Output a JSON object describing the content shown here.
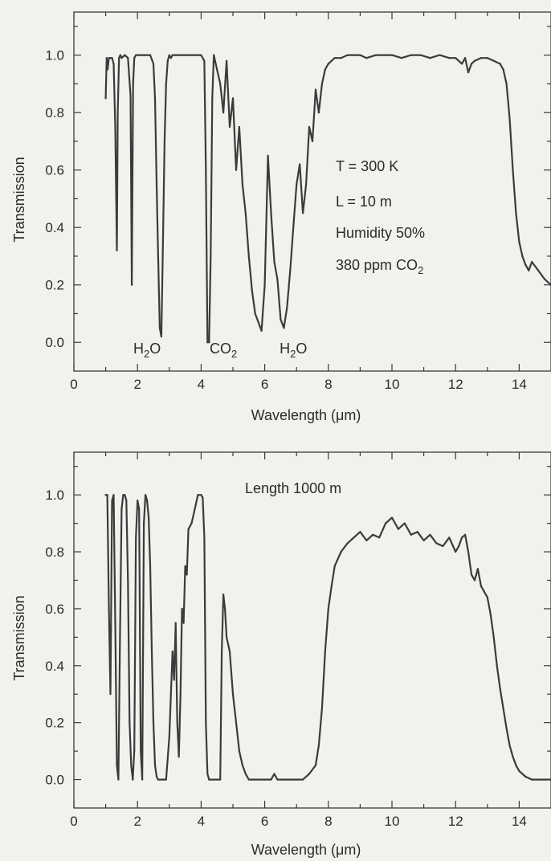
{
  "chart_data": [
    {
      "type": "line",
      "xlabel": "Wavelength (μm)",
      "ylabel": "Transmission",
      "xlim": [
        0,
        15
      ],
      "ylim": [
        -0.1,
        1.15
      ],
      "xticks": [
        0,
        2,
        4,
        6,
        8,
        10,
        12,
        14
      ],
      "yticks": [
        0.0,
        0.2,
        0.4,
        0.6,
        0.8,
        1.0
      ],
      "xticklabels": [
        "0",
        "2",
        "4",
        "6",
        "8",
        "10",
        "12",
        "14"
      ],
      "yticklabels": [
        "0.0",
        "0.2",
        "0.4",
        "0.6",
        "0.8",
        "1.0"
      ],
      "annotations": [
        {
          "text": "H₂O",
          "x": 2.3,
          "y": -0.03
        },
        {
          "text": "CO₂",
          "x": 4.7,
          "y": -0.03
        },
        {
          "text": "H₂O",
          "x": 6.9,
          "y": -0.03
        }
      ],
      "info_lines": [
        "T = 300 K",
        "L = 10 m",
        "Humidity 50%",
        "380 ppm CO₂"
      ],
      "series": [
        {
          "x": [
            1.0,
            1.03,
            1.06,
            1.1,
            1.15,
            1.2,
            1.25,
            1.3,
            1.35,
            1.38,
            1.42,
            1.46,
            1.5,
            1.6,
            1.7,
            1.78,
            1.82,
            1.86,
            1.9,
            1.95,
            2.0,
            2.2,
            2.4,
            2.5,
            2.55,
            2.6,
            2.65,
            2.7,
            2.75,
            2.8,
            2.85,
            2.9,
            2.95,
            3.0,
            3.05,
            3.1,
            3.2,
            3.4,
            3.6,
            3.8,
            4.0,
            4.1,
            4.15,
            4.2,
            4.25,
            4.3,
            4.35,
            4.4,
            4.5,
            4.6,
            4.7,
            4.8,
            4.9,
            5.0,
            5.1,
            5.2,
            5.3,
            5.4,
            5.5,
            5.6,
            5.7,
            5.8,
            5.9,
            6.0,
            6.1,
            6.2,
            6.3,
            6.4,
            6.5,
            6.6,
            6.7,
            6.8,
            6.9,
            7.0,
            7.1,
            7.2,
            7.3,
            7.4,
            7.5,
            7.6,
            7.7,
            7.8,
            7.9,
            8.0,
            8.2,
            8.4,
            8.6,
            8.8,
            9.0,
            9.2,
            9.5,
            9.8,
            10.0,
            10.3,
            10.6,
            10.9,
            11.2,
            11.5,
            11.8,
            12.0,
            12.2,
            12.3,
            12.4,
            12.5,
            12.6,
            12.8,
            13.0,
            13.2,
            13.4,
            13.5,
            13.6,
            13.7,
            13.8,
            13.9,
            14.0,
            14.1,
            14.2,
            14.3,
            14.4,
            14.6,
            14.8,
            15.0
          ],
          "y": [
            0.85,
            0.99,
            0.95,
            0.99,
            0.99,
            0.99,
            0.97,
            0.75,
            0.32,
            0.8,
            0.99,
            1.0,
            0.99,
            1.0,
            0.99,
            0.86,
            0.2,
            0.9,
            0.99,
            1.0,
            1.0,
            1.0,
            1.0,
            0.97,
            0.85,
            0.55,
            0.3,
            0.05,
            0.02,
            0.35,
            0.7,
            0.9,
            0.98,
            1.0,
            0.99,
            1.0,
            1.0,
            1.0,
            1.0,
            1.0,
            1.0,
            0.98,
            0.6,
            0.0,
            0.0,
            0.3,
            0.85,
            1.0,
            0.95,
            0.9,
            0.8,
            0.98,
            0.75,
            0.85,
            0.6,
            0.75,
            0.55,
            0.45,
            0.3,
            0.18,
            0.1,
            0.07,
            0.04,
            0.2,
            0.65,
            0.45,
            0.28,
            0.22,
            0.08,
            0.05,
            0.12,
            0.25,
            0.4,
            0.55,
            0.62,
            0.45,
            0.55,
            0.75,
            0.7,
            0.88,
            0.8,
            0.9,
            0.95,
            0.97,
            0.99,
            0.99,
            1.0,
            1.0,
            1.0,
            0.99,
            1.0,
            1.0,
            1.0,
            0.99,
            1.0,
            1.0,
            0.99,
            1.0,
            0.99,
            0.99,
            0.97,
            0.99,
            0.94,
            0.97,
            0.98,
            0.99,
            0.99,
            0.98,
            0.97,
            0.95,
            0.9,
            0.78,
            0.6,
            0.45,
            0.35,
            0.3,
            0.27,
            0.25,
            0.28,
            0.25,
            0.22,
            0.2
          ]
        }
      ]
    },
    {
      "type": "line",
      "xlabel": "Wavelength (μm)",
      "ylabel": "Transmission",
      "xlim": [
        0,
        15
      ],
      "ylim": [
        -0.1,
        1.15
      ],
      "xticks": [
        0,
        2,
        4,
        6,
        8,
        10,
        12,
        14
      ],
      "yticks": [
        0.0,
        0.2,
        0.4,
        0.6,
        0.8,
        1.0
      ],
      "xticklabels": [
        "0",
        "2",
        "4",
        "6",
        "8",
        "10",
        "12",
        "14"
      ],
      "yticklabels": [
        "0.0",
        "0.2",
        "0.4",
        "0.6",
        "0.8",
        "1.0"
      ],
      "annotations": [],
      "info_lines": [
        "Length 1000 m"
      ],
      "series": [
        {
          "x": [
            1.0,
            1.05,
            1.1,
            1.15,
            1.2,
            1.25,
            1.3,
            1.35,
            1.4,
            1.45,
            1.5,
            1.55,
            1.6,
            1.65,
            1.7,
            1.75,
            1.8,
            1.85,
            1.9,
            1.95,
            2.0,
            2.05,
            2.1,
            2.15,
            2.2,
            2.25,
            2.3,
            2.35,
            2.4,
            2.45,
            2.5,
            2.55,
            2.6,
            2.65,
            2.7,
            2.8,
            2.9,
            3.0,
            3.05,
            3.1,
            3.15,
            3.2,
            3.25,
            3.3,
            3.35,
            3.4,
            3.45,
            3.5,
            3.55,
            3.6,
            3.7,
            3.8,
            3.9,
            4.0,
            4.05,
            4.1,
            4.15,
            4.2,
            4.25,
            4.3,
            4.4,
            4.5,
            4.6,
            4.65,
            4.7,
            4.75,
            4.8,
            4.9,
            5.0,
            5.1,
            5.2,
            5.3,
            5.4,
            5.5,
            5.6,
            5.8,
            6.0,
            6.2,
            6.3,
            6.4,
            6.6,
            6.8,
            7.0,
            7.2,
            7.4,
            7.6,
            7.7,
            7.8,
            7.9,
            8.0,
            8.1,
            8.2,
            8.4,
            8.6,
            8.8,
            9.0,
            9.2,
            9.4,
            9.6,
            9.8,
            10.0,
            10.2,
            10.4,
            10.6,
            10.8,
            11.0,
            11.2,
            11.4,
            11.6,
            11.8,
            12.0,
            12.1,
            12.2,
            12.3,
            12.4,
            12.5,
            12.6,
            12.7,
            12.8,
            12.9,
            13.0,
            13.1,
            13.2,
            13.3,
            13.4,
            13.5,
            13.6,
            13.7,
            13.8,
            13.9,
            14.0,
            14.1,
            14.2,
            14.4,
            14.6,
            14.8,
            15.0
          ],
          "y": [
            1.0,
            1.0,
            0.6,
            0.3,
            0.98,
            1.0,
            0.55,
            0.05,
            0.0,
            0.5,
            0.95,
            1.0,
            1.0,
            0.98,
            0.7,
            0.2,
            0.05,
            0.0,
            0.1,
            0.85,
            0.98,
            0.95,
            0.1,
            0.0,
            0.9,
            1.0,
            0.98,
            0.92,
            0.75,
            0.45,
            0.2,
            0.05,
            0.01,
            0.0,
            0.0,
            0.0,
            0.0,
            0.15,
            0.3,
            0.45,
            0.35,
            0.55,
            0.2,
            0.08,
            0.3,
            0.6,
            0.55,
            0.75,
            0.72,
            0.88,
            0.9,
            0.95,
            1.0,
            1.0,
            0.99,
            0.85,
            0.2,
            0.02,
            0.0,
            0.0,
            0.0,
            0.0,
            0.0,
            0.45,
            0.65,
            0.6,
            0.5,
            0.45,
            0.3,
            0.2,
            0.1,
            0.05,
            0.02,
            0.0,
            0.0,
            0.0,
            0.0,
            0.0,
            0.02,
            0.0,
            0.0,
            0.0,
            0.0,
            0.0,
            0.02,
            0.05,
            0.12,
            0.25,
            0.45,
            0.6,
            0.68,
            0.75,
            0.8,
            0.83,
            0.85,
            0.87,
            0.84,
            0.86,
            0.85,
            0.9,
            0.92,
            0.88,
            0.9,
            0.86,
            0.87,
            0.84,
            0.86,
            0.83,
            0.82,
            0.85,
            0.8,
            0.82,
            0.85,
            0.86,
            0.8,
            0.72,
            0.7,
            0.74,
            0.68,
            0.66,
            0.64,
            0.58,
            0.5,
            0.4,
            0.32,
            0.25,
            0.18,
            0.12,
            0.08,
            0.05,
            0.03,
            0.02,
            0.01,
            0.0,
            0.0,
            0.0,
            0.0
          ]
        }
      ]
    }
  ]
}
